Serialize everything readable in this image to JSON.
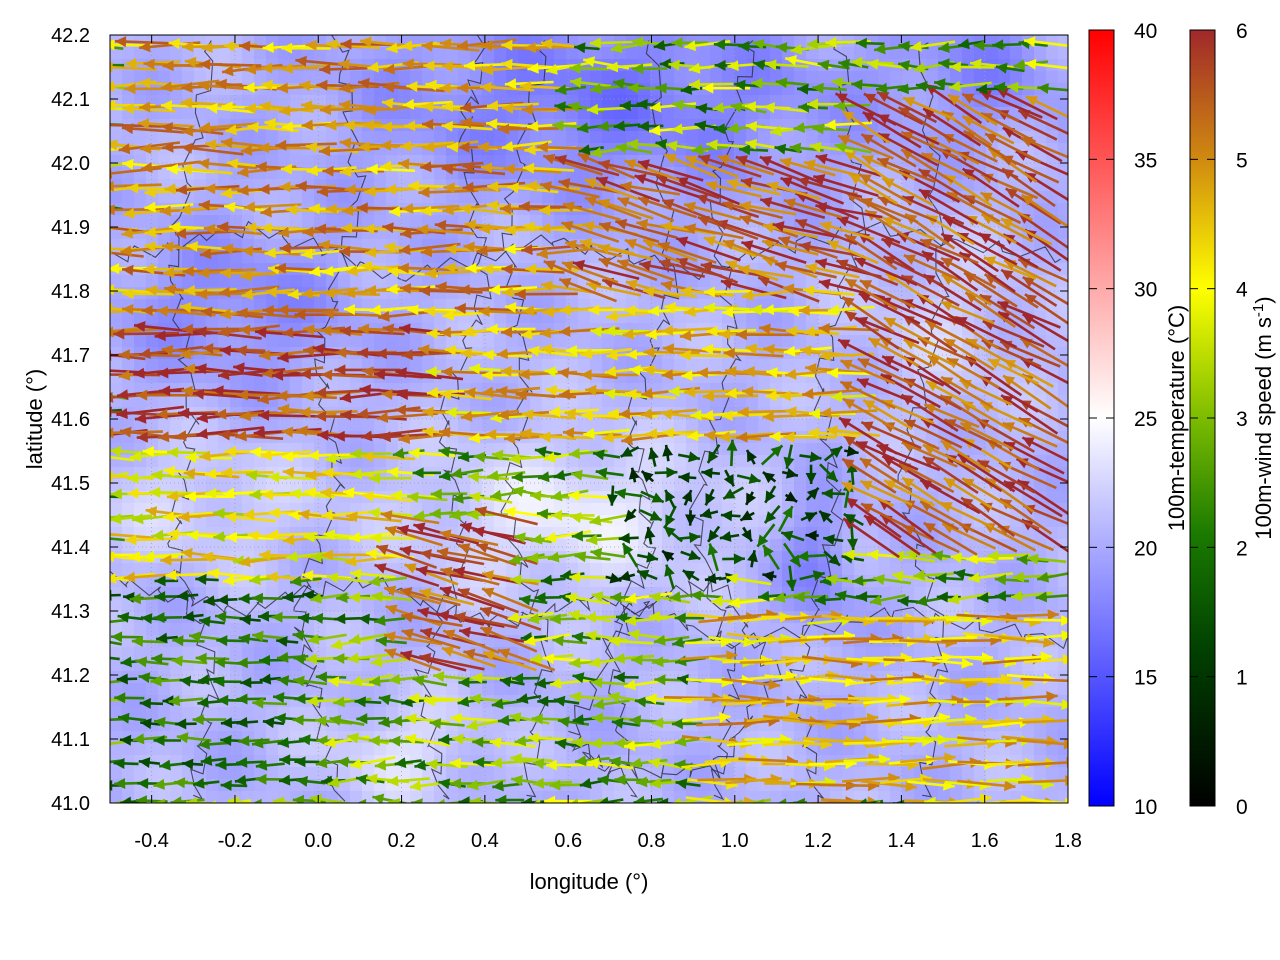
{
  "chart_data": {
    "type": "vector-field",
    "xlabel": "longitude (°)",
    "ylabel": "latitude (°)",
    "xlim": [
      -0.5,
      1.8
    ],
    "ylim": [
      41.0,
      42.2
    ],
    "x_ticks": [
      "-0.4",
      "-0.2",
      "0.0",
      "0.2",
      "0.4",
      "0.6",
      "0.8",
      "1.0",
      "1.2",
      "1.4",
      "1.6",
      "1.8"
    ],
    "y_ticks": [
      "41.0",
      "41.1",
      "41.2",
      "41.3",
      "41.4",
      "41.5",
      "41.6",
      "41.7",
      "41.8",
      "41.9",
      "42.0",
      "42.1",
      "42.2"
    ],
    "grid": true,
    "background_field": {
      "name": "100m-temperature",
      "colorbar_label": "100m-temperature (°C)",
      "range": [
        10,
        40
      ],
      "ticks": [
        "10",
        "15",
        "20",
        "25",
        "30",
        "35",
        "40"
      ],
      "colors": [
        "#0000ff",
        "#ffffff",
        "#ff0000"
      ],
      "typical_range": [
        14,
        27
      ]
    },
    "arrows": {
      "name": "100m-wind speed",
      "colorbar_label": "100m-wind speed (m s-1)",
      "range": [
        0,
        6
      ],
      "ticks": [
        "0",
        "1",
        "2",
        "3",
        "4",
        "5",
        "6"
      ],
      "colors": [
        "#000000",
        "#006400",
        "#7cbc00",
        "#ffff00",
        "#d08a10",
        "#a0282a"
      ],
      "regions": [
        {
          "lon": [
            -0.5,
            0.3
          ],
          "lat": [
            41.55,
            41.75
          ],
          "speed": 5.8,
          "direction": "westward"
        },
        {
          "lon": [
            -0.5,
            0.6
          ],
          "lat": [
            41.75,
            42.2
          ],
          "speed": 4.8,
          "direction": "westward"
        },
        {
          "lon": [
            0.6,
            1.3
          ],
          "lat": [
            41.8,
            42.0
          ],
          "speed": 5.5,
          "direction": "west-northwest"
        },
        {
          "lon": [
            1.3,
            1.8
          ],
          "lat": [
            41.4,
            42.1
          ],
          "speed": 5.6,
          "direction": "northwestward"
        },
        {
          "lon": [
            0.3,
            1.3
          ],
          "lat": [
            41.55,
            41.8
          ],
          "speed": 4.5,
          "direction": "westward"
        },
        {
          "lon": [
            -0.5,
            0.2
          ],
          "lat": [
            41.35,
            41.55
          ],
          "speed": 4.0,
          "direction": "westward"
        },
        {
          "lon": [
            0.2,
            0.5
          ],
          "lat": [
            41.2,
            41.45
          ],
          "speed": 5.6,
          "direction": "west-northwest"
        },
        {
          "lon": [
            0.9,
            1.8
          ],
          "lat": [
            41.0,
            41.3
          ],
          "speed": 4.5,
          "direction": "eastward"
        },
        {
          "lon": [
            0.7,
            1.3
          ],
          "lat": [
            41.35,
            41.55
          ],
          "speed": 1.3,
          "direction": "variable"
        },
        {
          "lon": [
            -0.5,
            0.0
          ],
          "lat": [
            41.0,
            41.35
          ],
          "speed": 2.0,
          "direction": "westward"
        }
      ]
    }
  }
}
